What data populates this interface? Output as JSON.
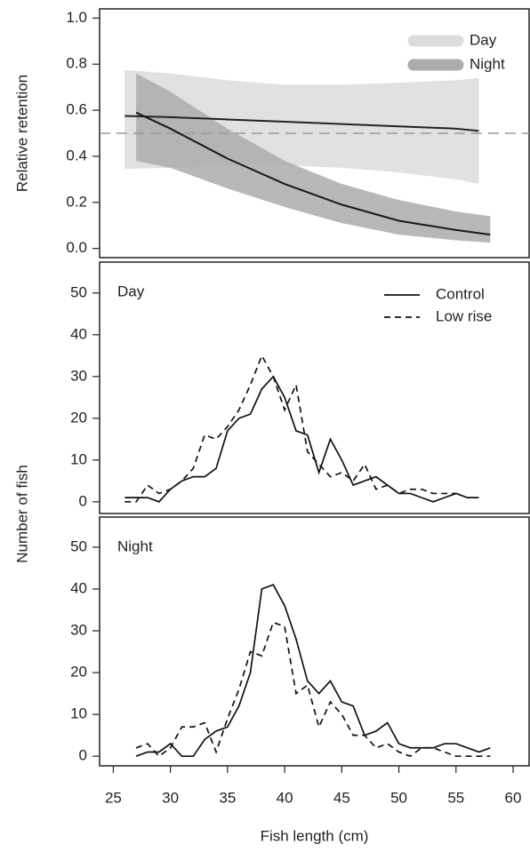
{
  "chart_data": [
    {
      "type": "band",
      "ylabel": "Relative retention",
      "xlim": [
        23.8,
        61.4
      ],
      "ylim": [
        -0.04,
        1.04
      ],
      "yticks": [
        {
          "value": 0,
          "label": "0.0"
        },
        0.2,
        0.4,
        0.6,
        0.8,
        {
          "value": 1,
          "label": "1.0"
        }
      ],
      "hline": {
        "value": 0.5,
        "color": "#999999",
        "linestyle": "dashed"
      },
      "series": [
        {
          "name": "Day",
          "color": "#dcdcdc",
          "line_color": "#222222",
          "x": [
            26,
            30,
            35,
            40,
            45,
            50,
            55,
            57
          ],
          "values": [
            0.575,
            0.57,
            0.56,
            0.55,
            0.54,
            0.53,
            0.52,
            0.51
          ],
          "lower": [
            0.345,
            0.35,
            0.36,
            0.36,
            0.35,
            0.33,
            0.3,
            0.28
          ],
          "upper": [
            0.775,
            0.76,
            0.73,
            0.71,
            0.71,
            0.72,
            0.73,
            0.74
          ]
        },
        {
          "name": "Night",
          "color": "#acacac",
          "line_color": "#1a1a1a",
          "x": [
            27,
            30,
            35,
            40,
            45,
            50,
            55,
            58
          ],
          "values": [
            0.59,
            0.52,
            0.39,
            0.28,
            0.19,
            0.12,
            0.08,
            0.06
          ],
          "lower": [
            0.38,
            0.35,
            0.26,
            0.18,
            0.11,
            0.06,
            0.035,
            0.025
          ],
          "upper": [
            0.76,
            0.68,
            0.52,
            0.38,
            0.28,
            0.21,
            0.16,
            0.14
          ]
        }
      ]
    },
    {
      "type": "line",
      "annotation": "Day",
      "ylabel": "Number of fish",
      "xlim": [
        23.8,
        61.4
      ],
      "ylim": [
        -2.8,
        57.4
      ],
      "yticks": [
        0,
        10,
        20,
        30,
        40,
        50
      ],
      "x": [
        26,
        27,
        28,
        29,
        30,
        31,
        32,
        33,
        34,
        35,
        36,
        37,
        38,
        39,
        40,
        41,
        42,
        43,
        44,
        45,
        46,
        47,
        48,
        49,
        50,
        51,
        52,
        53,
        54,
        55,
        56,
        57
      ],
      "series": [
        {
          "name": "Control",
          "color": "#111111",
          "linestyle": "solid",
          "values": [
            1,
            1,
            1,
            0,
            3,
            5,
            6,
            6,
            8,
            17,
            20,
            21,
            27,
            30,
            25,
            17,
            16,
            7,
            15,
            10,
            4,
            5,
            6,
            4,
            2,
            2,
            1,
            0,
            1,
            2,
            1,
            1
          ]
        },
        {
          "name": "Low rise",
          "color": "#111111",
          "linestyle": "dashed",
          "values": [
            0,
            0,
            4,
            2,
            3,
            5,
            8,
            16,
            15,
            18,
            22,
            28,
            35,
            30,
            22,
            28,
            12,
            9,
            6,
            7,
            5,
            9,
            3,
            4,
            2,
            3,
            3,
            2,
            2,
            2,
            null,
            null
          ]
        }
      ]
    },
    {
      "type": "line",
      "annotation": "Night",
      "xlabel": "Fish length (cm)",
      "xlim": [
        23.8,
        61.4
      ],
      "ylim": [
        -2.3,
        57.2
      ],
      "yticks": [
        0,
        10,
        20,
        30,
        40,
        50
      ],
      "xticks": [
        25,
        30,
        35,
        40,
        45,
        50,
        55,
        60
      ],
      "x": [
        27,
        28,
        29,
        30,
        31,
        32,
        33,
        34,
        35,
        36,
        37,
        38,
        39,
        40,
        41,
        42,
        43,
        44,
        45,
        46,
        47,
        48,
        49,
        50,
        51,
        52,
        53,
        54,
        55,
        56,
        57,
        58
      ],
      "series": [
        {
          "name": "Control",
          "color": "#111111",
          "linestyle": "solid",
          "values": [
            0,
            1,
            1,
            3,
            0,
            0,
            4,
            6,
            7,
            12,
            20,
            40,
            41,
            36,
            28,
            18,
            15,
            18,
            13,
            12,
            5,
            6,
            8,
            3,
            2,
            2,
            2,
            3,
            3,
            2,
            1,
            2
          ]
        },
        {
          "name": "Low rise",
          "color": "#111111",
          "linestyle": "dashed",
          "values": [
            2,
            3,
            0,
            2,
            7,
            7,
            8,
            1,
            9,
            16,
            25,
            24,
            32,
            31,
            15,
            17,
            7,
            13,
            10,
            5,
            5,
            2,
            3,
            1,
            0,
            2,
            2,
            1,
            0,
            0,
            0,
            0
          ]
        }
      ]
    }
  ]
}
